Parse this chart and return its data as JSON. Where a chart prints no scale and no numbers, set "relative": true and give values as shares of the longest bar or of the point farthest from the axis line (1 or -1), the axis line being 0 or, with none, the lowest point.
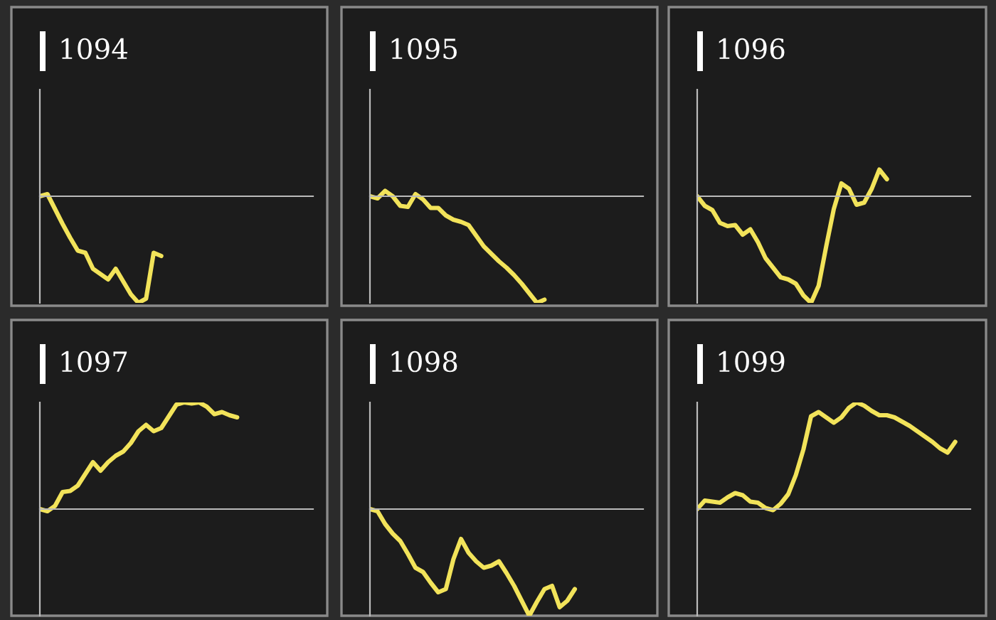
{
  "chart_data": [
    {
      "type": "line",
      "title": "1094",
      "relative": true,
      "categories": [
        null,
        null,
        null,
        null,
        null,
        null,
        null,
        null,
        null,
        null,
        null,
        null,
        null,
        null,
        null,
        null,
        null,
        null,
        null,
        null,
        null,
        null,
        null,
        null,
        null,
        null,
        null,
        null,
        null,
        null,
        null,
        null,
        null,
        null,
        null,
        null,
        null
      ],
      "series": [
        {
          "color": "#f2e35a",
          "values": [
            0,
            0.02,
            -0.12,
            -0.26,
            -0.39,
            -0.51,
            -0.53,
            -0.68,
            -0.73,
            -0.78,
            -0.68,
            -0.8,
            -0.92,
            -1,
            -0.96,
            -0.53,
            -0.56,
            null,
            null,
            null,
            null,
            null,
            null,
            null,
            null,
            null,
            null,
            null,
            null,
            null,
            null,
            null,
            null,
            null,
            null,
            null,
            null
          ]
        }
      ]
    },
    {
      "type": "line",
      "title": "1095",
      "relative": true,
      "categories": [
        null,
        null,
        null,
        null,
        null,
        null,
        null,
        null,
        null,
        null,
        null,
        null,
        null,
        null,
        null,
        null,
        null,
        null,
        null,
        null,
        null,
        null,
        null,
        null,
        null,
        null,
        null,
        null,
        null,
        null,
        null,
        null,
        null,
        null,
        null,
        null,
        null
      ],
      "series": [
        {
          "color": "#f2e35a",
          "values": [
            0,
            -0.02,
            0.05,
            0,
            -0.09,
            -0.1,
            0.02,
            -0.03,
            -0.11,
            -0.11,
            -0.18,
            -0.22,
            -0.24,
            -0.27,
            -0.37,
            -0.47,
            -0.54,
            -0.61,
            -0.67,
            -0.74,
            -0.82,
            -0.91,
            -1,
            -0.97,
            null,
            null,
            null,
            null,
            null,
            null,
            null,
            null,
            null,
            null,
            null,
            null,
            null
          ]
        }
      ]
    },
    {
      "type": "line",
      "title": "1096",
      "relative": true,
      "categories": [
        null,
        null,
        null,
        null,
        null,
        null,
        null,
        null,
        null,
        null,
        null,
        null,
        null,
        null,
        null,
        null,
        null,
        null,
        null,
        null,
        null,
        null,
        null,
        null,
        null,
        null,
        null,
        null,
        null,
        null,
        null,
        null,
        null,
        null,
        null,
        null,
        null
      ],
      "series": [
        {
          "color": "#f2e35a",
          "values": [
            0,
            -0.09,
            -0.13,
            -0.25,
            -0.28,
            -0.27,
            -0.36,
            -0.31,
            -0.43,
            -0.58,
            -0.67,
            -0.76,
            -0.78,
            -0.82,
            -0.93,
            -1,
            -0.84,
            -0.47,
            -0.12,
            0.12,
            0.07,
            -0.08,
            -0.06,
            0.07,
            0.25,
            0.16,
            null,
            null,
            null,
            null,
            null,
            null,
            null,
            null,
            null,
            null,
            null
          ]
        }
      ]
    },
    {
      "type": "line",
      "title": "1097",
      "relative": true,
      "categories": [
        null,
        null,
        null,
        null,
        null,
        null,
        null,
        null,
        null,
        null,
        null,
        null,
        null,
        null,
        null,
        null,
        null,
        null,
        null,
        null,
        null,
        null,
        null,
        null,
        null,
        null,
        null,
        null,
        null,
        null,
        null,
        null,
        null,
        null,
        null,
        null,
        null
      ],
      "series": [
        {
          "color": "#f2e35a",
          "values": [
            0,
            -0.02,
            0.03,
            0.16,
            0.17,
            0.22,
            0.33,
            0.44,
            0.36,
            0.44,
            0.5,
            0.54,
            0.62,
            0.73,
            0.79,
            0.73,
            0.76,
            0.87,
            0.98,
            1,
            0.99,
            1,
            0.96,
            0.89,
            0.91,
            0.88,
            0.86,
            null,
            null,
            null,
            null,
            null,
            null,
            null,
            null,
            null,
            null
          ]
        }
      ]
    },
    {
      "type": "line",
      "title": "1098",
      "relative": true,
      "categories": [
        null,
        null,
        null,
        null,
        null,
        null,
        null,
        null,
        null,
        null,
        null,
        null,
        null,
        null,
        null,
        null,
        null,
        null,
        null,
        null,
        null,
        null,
        null,
        null,
        null,
        null,
        null,
        null,
        null,
        null,
        null,
        null,
        null,
        null,
        null,
        null,
        null
      ],
      "series": [
        {
          "color": "#f2e35a",
          "values": [
            0,
            -0.02,
            -0.14,
            -0.23,
            -0.3,
            -0.42,
            -0.55,
            -0.59,
            -0.69,
            -0.78,
            -0.75,
            -0.47,
            -0.28,
            -0.41,
            -0.49,
            -0.55,
            -0.53,
            -0.49,
            -0.6,
            -0.72,
            -0.86,
            -1,
            -0.87,
            -0.75,
            -0.72,
            -0.92,
            -0.86,
            -0.75,
            null,
            null,
            null,
            null,
            null,
            null,
            null,
            null,
            null
          ]
        }
      ]
    },
    {
      "type": "line",
      "title": "1099",
      "relative": true,
      "categories": [
        null,
        null,
        null,
        null,
        null,
        null,
        null,
        null,
        null,
        null,
        null,
        null,
        null,
        null,
        null,
        null,
        null,
        null,
        null,
        null,
        null,
        null,
        null,
        null,
        null,
        null,
        null,
        null,
        null,
        null,
        null,
        null,
        null,
        null,
        null,
        null,
        null
      ],
      "series": [
        {
          "color": "#f2e35a",
          "values": [
            0,
            0.08,
            0.07,
            0.06,
            0.11,
            0.15,
            0.13,
            0.07,
            0.06,
            0.01,
            -0.01,
            0.05,
            0.14,
            0.32,
            0.56,
            0.87,
            0.91,
            0.86,
            0.81,
            0.86,
            0.95,
            1,
            0.97,
            0.92,
            0.88,
            0.88,
            0.86,
            0.82,
            0.78,
            0.73,
            0.68,
            0.63,
            0.57,
            0.53,
            0.63,
            null,
            null
          ]
        }
      ]
    }
  ]
}
